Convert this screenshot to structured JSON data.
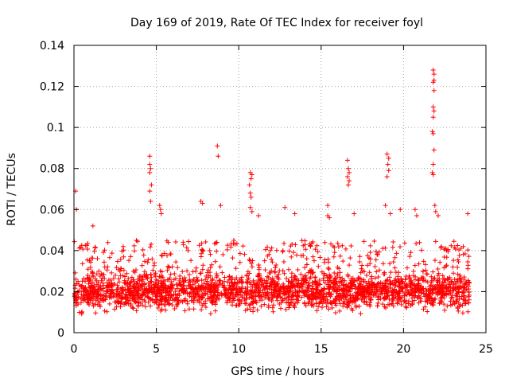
{
  "chart_data": {
    "type": "scatter",
    "title": "Day 169 of 2019, Rate Of TEC Index for receiver foyl",
    "xlabel": "GPS time / hours",
    "ylabel": "ROTI / TECUs",
    "xlim": [
      0,
      25
    ],
    "ylim": [
      0,
      0.14
    ],
    "xticks": [
      0,
      5,
      10,
      15,
      20,
      25
    ],
    "xtick_labels": [
      "0",
      "5",
      "10",
      "15",
      "20",
      "25"
    ],
    "yticks": [
      0,
      0.02,
      0.04,
      0.06,
      0.08,
      0.1,
      0.12,
      0.14
    ],
    "ytick_labels": [
      "0",
      "0.02",
      "0.04",
      "0.06",
      "0.08",
      "0.1",
      "0.12",
      "0.14"
    ],
    "grid": true,
    "marker": "+",
    "series_color": "#ff0000",
    "dense_band": {
      "x_range": [
        0,
        24
      ],
      "y_range": [
        0.005,
        0.045
      ],
      "typical": 0.018
    },
    "spikes": [
      {
        "x": 0.1,
        "y": 0.069
      },
      {
        "x": 0.15,
        "y": 0.06
      },
      {
        "x": 1.15,
        "y": 0.052
      },
      {
        "x": 4.6,
        "y": 0.086
      },
      {
        "x": 4.6,
        "y": 0.082
      },
      {
        "x": 4.65,
        "y": 0.08
      },
      {
        "x": 4.6,
        "y": 0.078
      },
      {
        "x": 4.7,
        "y": 0.072
      },
      {
        "x": 4.6,
        "y": 0.069
      },
      {
        "x": 4.65,
        "y": 0.064
      },
      {
        "x": 5.2,
        "y": 0.062
      },
      {
        "x": 5.3,
        "y": 0.058
      },
      {
        "x": 5.25,
        "y": 0.06
      },
      {
        "x": 7.7,
        "y": 0.064
      },
      {
        "x": 7.8,
        "y": 0.063
      },
      {
        "x": 8.7,
        "y": 0.091
      },
      {
        "x": 8.75,
        "y": 0.086
      },
      {
        "x": 8.9,
        "y": 0.062
      },
      {
        "x": 10.7,
        "y": 0.078
      },
      {
        "x": 10.8,
        "y": 0.077
      },
      {
        "x": 10.75,
        "y": 0.075
      },
      {
        "x": 10.65,
        "y": 0.072
      },
      {
        "x": 10.7,
        "y": 0.068
      },
      {
        "x": 10.75,
        "y": 0.066
      },
      {
        "x": 10.7,
        "y": 0.061
      },
      {
        "x": 10.8,
        "y": 0.059
      },
      {
        "x": 11.2,
        "y": 0.057
      },
      {
        "x": 12.8,
        "y": 0.061
      },
      {
        "x": 13.4,
        "y": 0.058
      },
      {
        "x": 15.4,
        "y": 0.062
      },
      {
        "x": 15.4,
        "y": 0.057
      },
      {
        "x": 15.5,
        "y": 0.056
      },
      {
        "x": 16.6,
        "y": 0.084
      },
      {
        "x": 16.65,
        "y": 0.08
      },
      {
        "x": 16.7,
        "y": 0.078
      },
      {
        "x": 16.6,
        "y": 0.076
      },
      {
        "x": 16.7,
        "y": 0.074
      },
      {
        "x": 16.65,
        "y": 0.072
      },
      {
        "x": 17.0,
        "y": 0.058
      },
      {
        "x": 19.0,
        "y": 0.087
      },
      {
        "x": 19.1,
        "y": 0.085
      },
      {
        "x": 19.05,
        "y": 0.082
      },
      {
        "x": 19.1,
        "y": 0.079
      },
      {
        "x": 19.0,
        "y": 0.076
      },
      {
        "x": 18.9,
        "y": 0.062
      },
      {
        "x": 19.2,
        "y": 0.058
      },
      {
        "x": 19.8,
        "y": 0.06
      },
      {
        "x": 20.7,
        "y": 0.06
      },
      {
        "x": 20.8,
        "y": 0.057
      },
      {
        "x": 21.8,
        "y": 0.128
      },
      {
        "x": 21.85,
        "y": 0.126
      },
      {
        "x": 21.85,
        "y": 0.123
      },
      {
        "x": 21.8,
        "y": 0.122
      },
      {
        "x": 21.85,
        "y": 0.118
      },
      {
        "x": 21.8,
        "y": 0.11
      },
      {
        "x": 21.85,
        "y": 0.108
      },
      {
        "x": 21.8,
        "y": 0.105
      },
      {
        "x": 21.75,
        "y": 0.098
      },
      {
        "x": 21.8,
        "y": 0.097
      },
      {
        "x": 21.85,
        "y": 0.089
      },
      {
        "x": 21.8,
        "y": 0.082
      },
      {
        "x": 21.75,
        "y": 0.078
      },
      {
        "x": 21.8,
        "y": 0.077
      },
      {
        "x": 21.9,
        "y": 0.062
      },
      {
        "x": 21.95,
        "y": 0.059
      },
      {
        "x": 22.1,
        "y": 0.057
      },
      {
        "x": 23.9,
        "y": 0.058
      }
    ]
  }
}
